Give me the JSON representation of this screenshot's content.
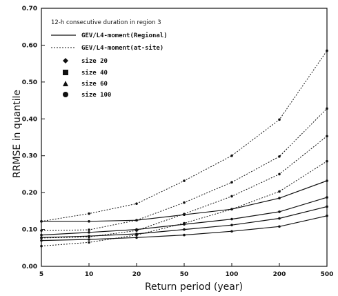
{
  "chart_data": {
    "type": "line",
    "title": "",
    "xlabel": "Return period (year)",
    "ylabel": "RRMSE in quantile",
    "x_categories": [
      "5",
      "10",
      "20",
      "50",
      "100",
      "200",
      "500"
    ],
    "y_ticks": [
      "0.00",
      "0.10",
      "0.20",
      "0.30",
      "0.40",
      "0.50",
      "0.60",
      "0.70"
    ],
    "ylim": [
      0,
      0.7
    ],
    "grid": false,
    "legend": {
      "placement": "top-left",
      "heading": "12-h consecutive duration in region 3",
      "line_entries": [
        {
          "label": "GEV/L4-moment(Regional)",
          "style": "solid"
        },
        {
          "label": "GEV/L4-moment(at-site)",
          "style": "dotted"
        }
      ],
      "marker_entries": [
        {
          "label": "size 20",
          "marker": "diamond"
        },
        {
          "label": "size 40",
          "marker": "square"
        },
        {
          "label": "size 60",
          "marker": "triangle"
        },
        {
          "label": "size 100",
          "marker": "circle"
        }
      ]
    },
    "series": [
      {
        "group": "regional",
        "size": "20",
        "style": "solid",
        "values": [
          0.122,
          0.122,
          0.125,
          0.14,
          0.155,
          0.185,
          0.232
        ]
      },
      {
        "group": "regional",
        "size": "40",
        "style": "solid",
        "values": [
          0.085,
          0.092,
          0.1,
          0.114,
          0.128,
          0.148,
          0.187
        ]
      },
      {
        "group": "regional",
        "size": "60",
        "style": "solid",
        "values": [
          0.078,
          0.082,
          0.088,
          0.1,
          0.112,
          0.13,
          0.162
        ]
      },
      {
        "group": "regional",
        "size": "100",
        "style": "solid",
        "values": [
          0.07,
          0.073,
          0.078,
          0.085,
          0.095,
          0.108,
          0.137
        ]
      },
      {
        "group": "at-site",
        "size": "20",
        "style": "dotted",
        "values": [
          0.122,
          0.143,
          0.17,
          0.232,
          0.3,
          0.398,
          0.585
        ]
      },
      {
        "group": "at-site",
        "size": "40",
        "style": "dotted",
        "values": [
          0.097,
          0.099,
          0.125,
          0.173,
          0.228,
          0.298,
          0.428
        ]
      },
      {
        "group": "at-site",
        "size": "60",
        "style": "dotted",
        "values": [
          0.077,
          0.08,
          0.097,
          0.142,
          0.19,
          0.25,
          0.353
        ]
      },
      {
        "group": "at-site",
        "size": "100",
        "style": "dotted",
        "values": [
          0.055,
          0.065,
          0.085,
          0.117,
          0.155,
          0.203,
          0.285
        ]
      }
    ]
  },
  "colors": {
    "ink": "#111111",
    "background": "#ffffff"
  }
}
